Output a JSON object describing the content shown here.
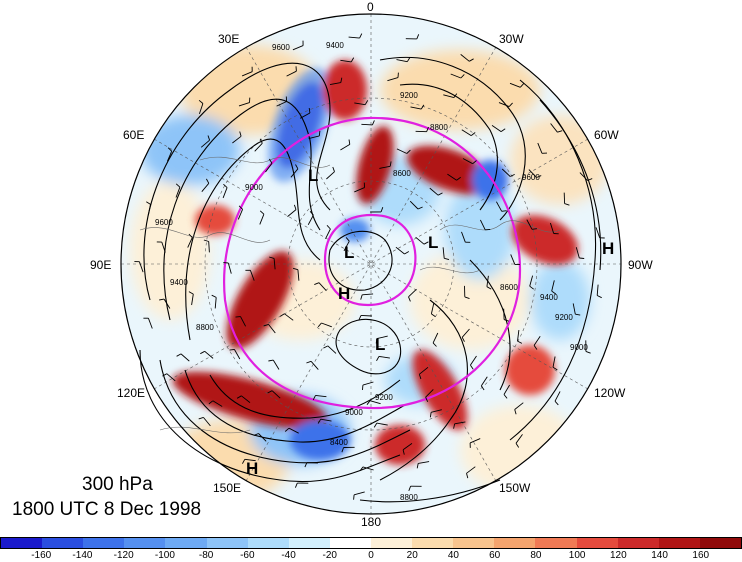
{
  "title": {
    "level": "300 hPa",
    "datetime": "1800 UTC 8 Dec 1998"
  },
  "longitude_labels": [
    "0",
    "30W",
    "60W",
    "90W",
    "120W",
    "150W",
    "180",
    "150E",
    "120E",
    "90E",
    "60E",
    "30E"
  ],
  "pressure_centers": [
    "L",
    "L",
    "L",
    "L",
    "H",
    "H",
    "H"
  ],
  "contour_labels": [
    "9600",
    "9400",
    "9200",
    "9000",
    "8800",
    "8600",
    "8400",
    "8600",
    "8800",
    "9000",
    "9200",
    "9400",
    "9600",
    "9600",
    "9400",
    "9200",
    "9000",
    "8800"
  ],
  "colorbar": {
    "tick_labels": [
      "-160",
      "-140",
      "-120",
      "-100",
      "-80",
      "-60",
      "-40",
      "-20",
      "0",
      "20",
      "40",
      "60",
      "80",
      "100",
      "120",
      "140",
      "160"
    ],
    "colors": [
      "#1a1acc",
      "#2a4ee0",
      "#3d72ea",
      "#5590f0",
      "#6eaaf4",
      "#8ec4f8",
      "#aedcfb",
      "#d3f0fd",
      "#ffffff",
      "#fdf0d8",
      "#fbdcae",
      "#f8c48e",
      "#f4a46e",
      "#f07a55",
      "#e54b3d",
      "#cc2a2a",
      "#b01515",
      "#900a0a"
    ]
  },
  "colors": {
    "jet_contour": "#e020e0",
    "height_contour": "#000000"
  }
}
